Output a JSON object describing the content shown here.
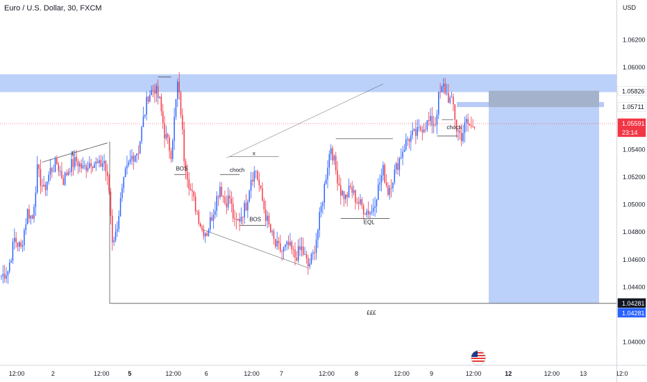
{
  "title": "Euro / U.S. Dollar, 30, FXCM",
  "currency": "USD",
  "colors": {
    "up": "#2962ff",
    "down": "#f23645",
    "zone": "#bcd1f9",
    "zone_dark": "#9ab4f2",
    "grey_box": "#9aa5b8",
    "current": "#f23645",
    "level": "#131722",
    "level2": "#2962ff",
    "text": "#131722",
    "axis": "#d1d4dc"
  },
  "chart_data": {
    "type": "candlestick",
    "y_range": [
      1.0385,
      1.064
    ],
    "y_ticks": [
      "1.06200",
      "1.06000",
      "1.05400",
      "1.05200",
      "1.05000",
      "1.04800",
      "1.04600",
      "1.04400",
      "1.04000"
    ],
    "y_tick_values": [
      1.062,
      1.06,
      1.054,
      1.052,
      1.05,
      1.048,
      1.046,
      1.044,
      1.04
    ],
    "x_ticks": [
      {
        "label": "12:00",
        "bold": false
      },
      {
        "label": "2",
        "bold": false
      },
      {
        "label": "12:00",
        "bold": false
      },
      {
        "label": "5",
        "bold": true
      },
      {
        "label": "12:00",
        "bold": false
      },
      {
        "label": "6",
        "bold": false
      },
      {
        "label": "12:00",
        "bold": false
      },
      {
        "label": "7",
        "bold": false
      },
      {
        "label": "12:00",
        "bold": false
      },
      {
        "label": "8",
        "bold": false
      },
      {
        "label": "12:00",
        "bold": false
      },
      {
        "label": "9",
        "bold": false
      },
      {
        "label": "12:00",
        "bold": false
      },
      {
        "label": "12",
        "bold": true
      },
      {
        "label": "12:00",
        "bold": false
      },
      {
        "label": "13",
        "bold": false
      },
      {
        "label": "12:0",
        "bold": false
      }
    ],
    "x_tick_index": [
      8,
      34,
      60,
      81,
      104,
      128,
      152,
      174,
      198,
      220,
      244,
      266,
      288,
      312,
      336,
      358,
      380
    ],
    "price_labels": [
      {
        "value": "1.05826",
        "price": 1.05826,
        "style": "plain"
      },
      {
        "value": "1.05711",
        "price": 1.05711,
        "style": "plain"
      },
      {
        "value": "1.05591",
        "price": 1.05591,
        "style": "current"
      },
      {
        "value": "23:14",
        "price": 1.05591,
        "style": "timer"
      },
      {
        "value": "1.04281",
        "price": 1.04281,
        "style": "dark"
      },
      {
        "value": "1.04281",
        "price": 1.04281,
        "style": "blue"
      }
    ],
    "current_price": 1.05591,
    "key_level": 1.04281,
    "anchors": [
      [
        0,
        1.0448
      ],
      [
        4,
        1.0452
      ],
      [
        8,
        1.0475
      ],
      [
        12,
        1.0468
      ],
      [
        16,
        1.0495
      ],
      [
        19,
        1.049
      ],
      [
        22,
        1.0525
      ],
      [
        26,
        1.051
      ],
      [
        30,
        1.0525
      ],
      [
        34,
        1.053
      ],
      [
        38,
        1.0518
      ],
      [
        42,
        1.0528
      ],
      [
        46,
        1.0532
      ],
      [
        50,
        1.0526
      ],
      [
        55,
        1.0532
      ],
      [
        60,
        1.0528
      ],
      [
        63,
        1.0532
      ],
      [
        66,
        1.051
      ],
      [
        68,
        1.0475
      ],
      [
        70,
        1.0478
      ],
      [
        73,
        1.0502
      ],
      [
        76,
        1.0522
      ],
      [
        80,
        1.0535
      ],
      [
        84,
        1.054
      ],
      [
        87,
        1.0562
      ],
      [
        90,
        1.058
      ],
      [
        94,
        1.0585
      ],
      [
        97,
        1.0575
      ],
      [
        100,
        1.0552
      ],
      [
        104,
        1.0538
      ],
      [
        106,
        1.0562
      ],
      [
        108,
        1.0588
      ],
      [
        110,
        1.0568
      ],
      [
        112,
        1.0535
      ],
      [
        116,
        1.051
      ],
      [
        120,
        1.0495
      ],
      [
        123,
        1.0482
      ],
      [
        126,
        1.048
      ],
      [
        130,
        1.0496
      ],
      [
        134,
        1.0514
      ],
      [
        137,
        1.0502
      ],
      [
        140,
        1.0505
      ],
      [
        143,
        1.0485
      ],
      [
        146,
        1.049
      ],
      [
        150,
        1.05
      ],
      [
        153,
        1.052
      ],
      [
        156,
        1.0525
      ],
      [
        159,
        1.0508
      ],
      [
        162,
        1.0492
      ],
      [
        165,
        1.048
      ],
      [
        168,
        1.047
      ],
      [
        172,
        1.0466
      ],
      [
        176,
        1.047
      ],
      [
        180,
        1.0462
      ],
      [
        184,
        1.0468
      ],
      [
        188,
        1.0455
      ],
      [
        191,
        1.0463
      ],
      [
        194,
        1.0482
      ],
      [
        197,
        1.0505
      ],
      [
        200,
        1.053
      ],
      [
        202,
        1.0543
      ],
      [
        205,
        1.0525
      ],
      [
        208,
        1.051
      ],
      [
        211,
        1.0505
      ],
      [
        214,
        1.0512
      ],
      [
        217,
        1.0505
      ],
      [
        220,
        1.05
      ],
      [
        223,
        1.0496
      ],
      [
        227,
        1.0495
      ],
      [
        230,
        1.0508
      ],
      [
        234,
        1.0525
      ],
      [
        237,
        1.051
      ],
      [
        240,
        1.052
      ],
      [
        243,
        1.053
      ],
      [
        246,
        1.054
      ],
      [
        249,
        1.0548
      ],
      [
        252,
        1.055
      ],
      [
        255,
        1.0552
      ],
      [
        258,
        1.0557
      ],
      [
        262,
        1.056
      ],
      [
        266,
        1.056
      ],
      [
        268,
        1.0578
      ],
      [
        271,
        1.0586
      ],
      [
        274,
        1.0578
      ],
      [
        277,
        1.0572
      ],
      [
        279,
        1.0555
      ],
      [
        282,
        1.055
      ],
      [
        285,
        1.056
      ],
      [
        288,
        1.0556
      ],
      [
        290,
        1.056
      ]
    ],
    "annotations": [
      {
        "text": "£"
      },
      {
        "text": "BOS"
      },
      {
        "text": "choch"
      },
      {
        "text": "x"
      },
      {
        "text": "BOS"
      },
      {
        "text": "EQL"
      },
      {
        "text": "choch"
      },
      {
        "text": "£££"
      }
    ]
  }
}
